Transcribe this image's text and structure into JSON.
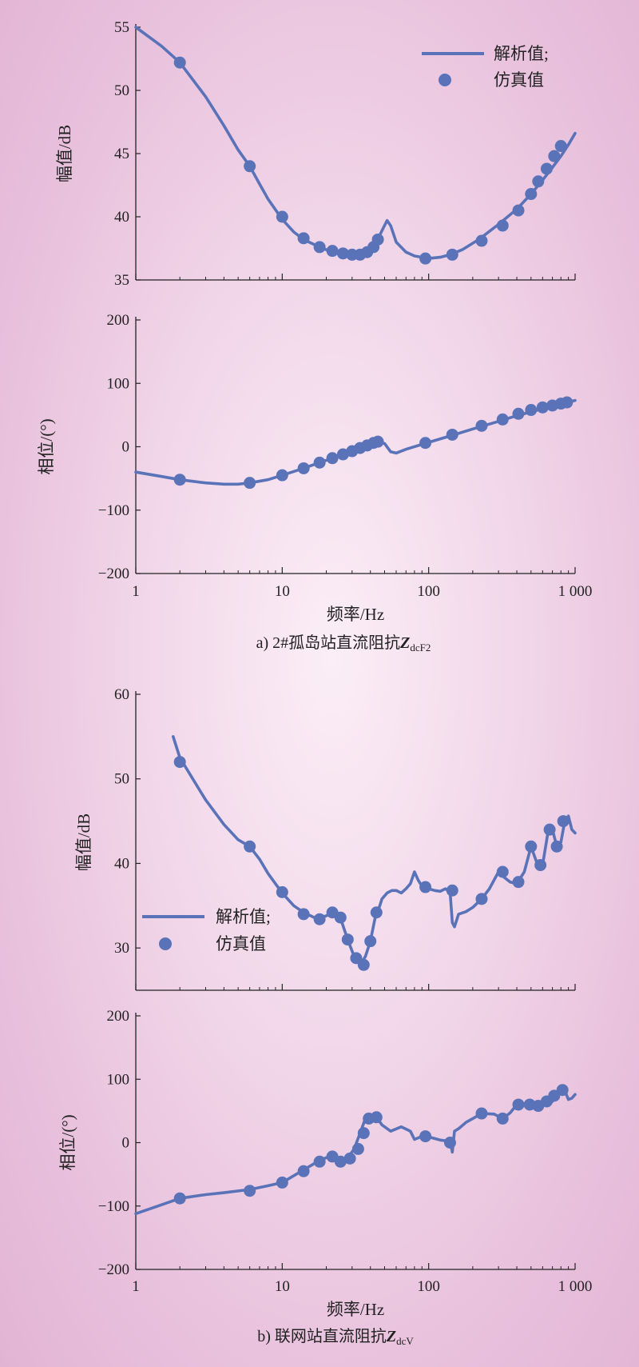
{
  "colors": {
    "series": "#5a73b8",
    "axis": "#222222"
  },
  "captions": [
    {
      "prefix": "a) 2#孤岛站直流阻抗",
      "symbol": "Z",
      "subscript": "dcF2"
    },
    {
      "prefix": "b) 联网站直流阻抗",
      "symbol": "Z",
      "subscript": "dcV"
    }
  ],
  "legend": {
    "line_label": "解析值;",
    "marker_label": "仿真值"
  },
  "x_axis": {
    "label": "频率/Hz",
    "scale": "log",
    "range": [
      1,
      1000
    ],
    "ticks": [
      1,
      10,
      100,
      1000
    ],
    "tick_labels": [
      "1",
      "10",
      "100",
      "1 000"
    ]
  },
  "chart_data": [
    {
      "type": "line",
      "title": "a) 2#孤岛站直流阻抗ZdcF2 — 幅值",
      "ylabel": "幅值/dB",
      "xscale": "log",
      "ylim": [
        35,
        55
      ],
      "yticks": [
        35,
        40,
        45,
        50,
        55
      ],
      "legend_position": "top-right",
      "series": [
        {
          "name": "解析值",
          "style": "line",
          "x": [
            1,
            1.5,
            2,
            3,
            4,
            5,
            6,
            7,
            8,
            10,
            12,
            14,
            18,
            22,
            27,
            32,
            36,
            40,
            44,
            48,
            52,
            55,
            60,
            70,
            80,
            90,
            100,
            120,
            140,
            170,
            220,
            300,
            400,
            500,
            600,
            700,
            800,
            900,
            1000
          ],
          "y": [
            55,
            53.5,
            52.2,
            49.5,
            47.2,
            45.3,
            44.0,
            42.6,
            41.4,
            39.8,
            38.8,
            38.2,
            37.6,
            37.2,
            37.0,
            37.0,
            37.2,
            37.5,
            38.0,
            38.9,
            39.7,
            39.3,
            38.0,
            37.2,
            36.9,
            36.8,
            36.7,
            36.8,
            37.0,
            37.4,
            38.2,
            39.4,
            40.6,
            41.8,
            42.9,
            43.9,
            44.8,
            45.7,
            46.6
          ]
        },
        {
          "name": "仿真值",
          "style": "marker",
          "x": [
            2,
            6,
            10,
            14,
            18,
            22,
            26,
            30,
            34,
            38,
            42,
            45,
            95,
            145,
            230,
            320,
            410,
            500,
            560,
            640,
            720,
            800
          ],
          "y": [
            52.2,
            44.0,
            40.0,
            38.3,
            37.6,
            37.3,
            37.1,
            37.0,
            37.0,
            37.2,
            37.6,
            38.2,
            36.7,
            37.0,
            38.1,
            39.3,
            40.5,
            41.8,
            42.8,
            43.8,
            44.8,
            45.6
          ]
        }
      ]
    },
    {
      "type": "line",
      "title": "a) 2#孤岛站直流阻抗ZdcF2 — 相位",
      "ylabel": "相位/(°)",
      "xscale": "log",
      "ylim": [
        -200,
        200
      ],
      "yticks": [
        -200,
        -100,
        0,
        100,
        200
      ],
      "series": [
        {
          "name": "解析值",
          "style": "line",
          "x": [
            1,
            1.5,
            2,
            3,
            4,
            5,
            6,
            8,
            10,
            14,
            18,
            25,
            35,
            45,
            50,
            55,
            60,
            70,
            100,
            150,
            200,
            300,
            400,
            500,
            700,
            1000
          ],
          "y": [
            -40,
            -47,
            -52,
            -57,
            -59,
            -59,
            -57,
            -52,
            -45,
            -34,
            -25,
            -14,
            -2,
            8,
            5,
            -8,
            -10,
            -4,
            7,
            19,
            28,
            40,
            49,
            55,
            64,
            73
          ]
        },
        {
          "name": "仿真值",
          "style": "marker",
          "x": [
            2,
            6,
            10,
            14,
            18,
            22,
            26,
            30,
            34,
            38,
            42,
            45,
            95,
            145,
            230,
            320,
            410,
            500,
            600,
            700,
            800,
            880
          ],
          "y": [
            -52,
            -57,
            -45,
            -34,
            -25,
            -18,
            -12,
            -7,
            -2,
            2,
            6,
            8,
            6,
            19,
            33,
            43,
            52,
            58,
            62,
            65,
            68,
            70
          ]
        }
      ]
    },
    {
      "type": "line",
      "title": "b) 联网站直流阻抗ZdcV — 幅值",
      "ylabel": "幅值/dB",
      "xscale": "log",
      "ylim": [
        25,
        60
      ],
      "yticks": [
        30,
        40,
        50,
        60
      ],
      "legend_position": "middle-left",
      "series": [
        {
          "name": "解析值",
          "style": "line",
          "x": [
            1.8,
            2,
            3,
            4,
            5,
            6,
            7,
            8,
            10,
            12,
            14,
            17,
            20,
            22,
            25,
            28,
            31,
            34,
            37,
            40,
            43,
            45,
            48,
            52,
            56,
            60,
            65,
            70,
            75,
            80,
            85,
            90,
            100,
            110,
            120,
            130,
            140,
            145,
            150,
            160,
            180,
            200,
            230,
            260,
            300,
            320,
            360,
            400,
            450,
            500,
            550,
            600,
            650,
            700,
            750,
            800,
            850,
            900,
            950,
            1000
          ],
          "y": [
            55,
            52.5,
            47.5,
            44.6,
            42.8,
            42.0,
            40.5,
            38.8,
            36.5,
            35.0,
            34.2,
            33.5,
            33.8,
            34.3,
            33.5,
            31.0,
            29.0,
            28.0,
            29.0,
            30.8,
            33.5,
            34.3,
            35.8,
            36.5,
            36.8,
            36.8,
            36.5,
            37.0,
            37.6,
            39.0,
            38.0,
            37.3,
            37.0,
            36.8,
            36.7,
            37.0,
            36.6,
            33.0,
            32.5,
            34.0,
            34.3,
            34.8,
            35.8,
            37.0,
            39.0,
            38.5,
            37.8,
            37.6,
            39.0,
            42.0,
            40.0,
            39.8,
            43.5,
            44.0,
            42.0,
            42.5,
            45.0,
            45.6,
            44.0,
            43.6
          ]
        },
        {
          "name": "仿真值",
          "style": "marker",
          "x": [
            2,
            6,
            10,
            14,
            18,
            22,
            25,
            28,
            32,
            36,
            40,
            44,
            95,
            145,
            230,
            320,
            410,
            500,
            580,
            670,
            750,
            830
          ],
          "y": [
            52.0,
            42.0,
            36.6,
            34.0,
            33.4,
            34.2,
            33.6,
            31.0,
            28.8,
            28.0,
            30.8,
            34.2,
            37.2,
            36.8,
            35.8,
            39.0,
            37.8,
            42.0,
            39.8,
            44.0,
            42.0,
            45.0
          ]
        }
      ]
    },
    {
      "type": "line",
      "title": "b) 联网站直流阻抗ZdcV — 相位",
      "ylabel": "相位/(°)",
      "xscale": "log",
      "ylim": [
        -200,
        200
      ],
      "yticks": [
        -200,
        -100,
        0,
        100,
        200
      ],
      "series": [
        {
          "name": "解析值",
          "style": "line",
          "x": [
            1,
            1.5,
            2,
            3,
            4,
            6,
            8,
            10,
            14,
            18,
            22,
            25,
            28,
            31,
            34,
            37,
            40,
            44,
            48,
            55,
            65,
            75,
            80,
            90,
            100,
            120,
            140,
            145,
            150,
            160,
            180,
            200,
            230,
            280,
            320,
            360,
            400,
            450,
            500,
            550,
            600,
            650,
            700,
            750,
            800,
            850,
            900,
            950,
            1000
          ],
          "y": [
            -112,
            -98,
            -88,
            -82,
            -79,
            -74,
            -68,
            -63,
            -43,
            -28,
            -20,
            -28,
            -24,
            -10,
            15,
            38,
            40,
            40,
            28,
            18,
            25,
            18,
            5,
            10,
            9,
            4,
            2,
            -15,
            18,
            22,
            32,
            38,
            46,
            45,
            38,
            47,
            60,
            60,
            58,
            55,
            65,
            70,
            65,
            75,
            83,
            82,
            68,
            70,
            76
          ]
        },
        {
          "name": "仿真值",
          "style": "marker",
          "x": [
            2,
            6,
            10,
            14,
            18,
            22,
            25,
            29,
            33,
            36,
            39,
            44,
            95,
            140,
            230,
            320,
            410,
            490,
            560,
            640,
            720,
            820
          ],
          "y": [
            -88,
            -76,
            -63,
            -45,
            -30,
            -22,
            -30,
            -25,
            -10,
            15,
            38,
            40,
            10,
            0,
            46,
            38,
            60,
            60,
            58,
            65,
            74,
            83
          ]
        }
      ]
    }
  ]
}
